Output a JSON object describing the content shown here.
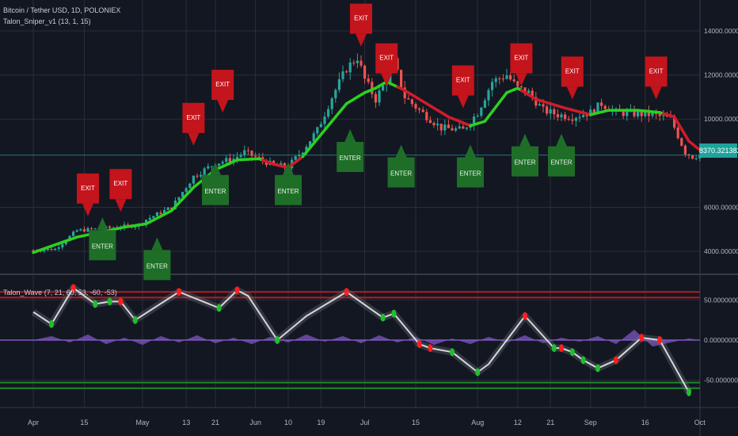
{
  "header": {
    "symbol_line": "Bitcoin / Tether USD, 1D, POLONIEX",
    "indicator_top": "Talon_Sniper_v1 (13, 1, 15)",
    "indicator_bottom": "Talon_Wave (7, 21, 60, 53, -60, -53)"
  },
  "colors": {
    "background": "#131722",
    "grid": "#2a2e39",
    "up_candle": "#26a69a",
    "down_candle": "#ef5350",
    "ema_up": "#2bd11f",
    "ema_down": "#d01c2a",
    "exit_marker": "#c4141c",
    "enter_marker": "#1f6e28",
    "wave_line": "#d8d8d8",
    "histogram": "#7e57c2",
    "overbought_band": "#b71c1c",
    "oversold_band": "#1b8a2b",
    "price_tag": "#1ea39a"
  },
  "labels": {
    "exit": "EXIT",
    "enter": "ENTER",
    "last_price": "8370.32138255"
  },
  "chart_data": [
    {
      "type": "candlestick",
      "title": "Bitcoin / Tether USD, 1D, POLONIEX",
      "ylim": [
        3000,
        15400
      ],
      "y_ticks": [
        "14000.00000000",
        "12000.00000000",
        "10000.00000000",
        "6000.00000000",
        "4000.00000000"
      ],
      "y_tick_values": [
        14000,
        12000,
        10000,
        6000,
        4000
      ],
      "x_ticks": [
        "Apr",
        "15",
        "May",
        "13",
        "21",
        "Jun",
        "10",
        "19",
        "Jul",
        "15",
        "Aug",
        "12",
        "21",
        "Sep",
        "16",
        "Oct"
      ],
      "x_tick_days": [
        0,
        14,
        30,
        42,
        50,
        61,
        70,
        79,
        91,
        105,
        122,
        133,
        142,
        153,
        168,
        183
      ],
      "price_path": [
        [
          0,
          4050
        ],
        [
          6,
          4110
        ],
        [
          12,
          4950
        ],
        [
          20,
          5050
        ],
        [
          29,
          5200
        ],
        [
          31,
          5450
        ],
        [
          38,
          6000
        ],
        [
          44,
          7400
        ],
        [
          50,
          8000
        ],
        [
          55,
          8200
        ],
        [
          58,
          8500
        ],
        [
          62,
          8200
        ],
        [
          66,
          7900
        ],
        [
          70,
          7850
        ],
        [
          74,
          8600
        ],
        [
          78,
          9500
        ],
        [
          82,
          11000
        ],
        [
          86,
          12300
        ],
        [
          89,
          12800
        ],
        [
          91,
          11800
        ],
        [
          94,
          10900
        ],
        [
          97,
          11800
        ],
        [
          99,
          12600
        ],
        [
          102,
          11000
        ],
        [
          106,
          10400
        ],
        [
          112,
          9600
        ],
        [
          118,
          9500
        ],
        [
          122,
          10300
        ],
        [
          126,
          11700
        ],
        [
          130,
          12000
        ],
        [
          133,
          11400
        ],
        [
          136,
          11200
        ],
        [
          140,
          10400
        ],
        [
          144,
          10200
        ],
        [
          148,
          10100
        ],
        [
          153,
          10300
        ],
        [
          156,
          10700
        ],
        [
          160,
          10300
        ],
        [
          164,
          10250
        ],
        [
          170,
          10200
        ],
        [
          175,
          10000
        ],
        [
          179,
          8500
        ],
        [
          181,
          8300
        ],
        [
          183,
          8370
        ]
      ],
      "ema_path": [
        [
          0,
          3950
        ],
        [
          12,
          4650
        ],
        [
          25,
          5100
        ],
        [
          31,
          5250
        ],
        [
          38,
          5850
        ],
        [
          44,
          6900
        ],
        [
          50,
          7700
        ],
        [
          56,
          8150
        ],
        [
          62,
          8200
        ],
        [
          66,
          7950
        ],
        [
          70,
          7800
        ],
        [
          74,
          8300
        ],
        [
          80,
          9500
        ],
        [
          86,
          10700
        ],
        [
          91,
          11200
        ],
        [
          94,
          11400
        ],
        [
          97,
          11700
        ],
        [
          102,
          11300
        ],
        [
          108,
          10700
        ],
        [
          114,
          10100
        ],
        [
          120,
          9700
        ],
        [
          124,
          9900
        ],
        [
          130,
          11200
        ],
        [
          133,
          11400
        ],
        [
          138,
          10900
        ],
        [
          146,
          10500
        ],
        [
          153,
          10200
        ],
        [
          158,
          10400
        ],
        [
          166,
          10400
        ],
        [
          172,
          10300
        ],
        [
          176,
          10100
        ],
        [
          180,
          9000
        ],
        [
          183,
          8600
        ]
      ],
      "ema_up_ranges": [
        [
          0,
          62
        ],
        [
          74,
          99
        ],
        [
          120,
          133
        ],
        [
          153,
          172
        ]
      ],
      "last_price": 8370.32138255,
      "exit_signals": [
        [
          15,
          7500
        ],
        [
          24,
          7700
        ],
        [
          44,
          10700
        ],
        [
          52,
          12200
        ],
        [
          90,
          15200
        ],
        [
          97,
          13400
        ],
        [
          118,
          12400
        ],
        [
          134,
          13400
        ],
        [
          148,
          12800
        ],
        [
          171,
          12800
        ]
      ],
      "enter_signals": [
        [
          19,
          3600
        ],
        [
          34,
          2700
        ],
        [
          50,
          6100
        ],
        [
          70,
          6100
        ],
        [
          87,
          7600
        ],
        [
          101,
          6900
        ],
        [
          120,
          6900
        ],
        [
          135,
          7400
        ],
        [
          145,
          7400
        ]
      ]
    },
    {
      "type": "line",
      "title": "Talon_Wave (7, 21, 60, 53, -60, -53)",
      "ylim": [
        -80,
        80
      ],
      "y_ticks": [
        "50.00000000",
        "0.00000000",
        "-50.00000000"
      ],
      "y_tick_values": [
        50,
        0,
        -50
      ],
      "overbought": [
        60,
        53
      ],
      "oversold": [
        -60,
        -53
      ],
      "wave_line": [
        [
          0,
          35
        ],
        [
          5,
          20
        ],
        [
          11,
          65
        ],
        [
          17,
          45
        ],
        [
          21,
          48
        ],
        [
          24,
          48
        ],
        [
          28,
          25
        ],
        [
          40,
          60
        ],
        [
          51,
          40
        ],
        [
          56,
          62
        ],
        [
          59,
          55
        ],
        [
          67,
          0
        ],
        [
          75,
          30
        ],
        [
          86,
          60
        ],
        [
          96,
          28
        ],
        [
          99,
          33
        ],
        [
          106,
          -5
        ],
        [
          109,
          -10
        ],
        [
          115,
          -15
        ],
        [
          122,
          -40
        ],
        [
          125,
          -30
        ],
        [
          135,
          30
        ],
        [
          143,
          -10
        ],
        [
          145,
          -10
        ],
        [
          148,
          -15
        ],
        [
          151,
          -25
        ],
        [
          155,
          -35
        ],
        [
          160,
          -25
        ],
        [
          167,
          3
        ],
        [
          172,
          0
        ],
        [
          180,
          -65
        ]
      ],
      "markers": [
        [
          5,
          20,
          "green"
        ],
        [
          11,
          65,
          "red"
        ],
        [
          17,
          45,
          "green"
        ],
        [
          21,
          48,
          "green"
        ],
        [
          24,
          48,
          "red"
        ],
        [
          28,
          25,
          "green"
        ],
        [
          40,
          60,
          "red"
        ],
        [
          51,
          40,
          "green"
        ],
        [
          56,
          62,
          "red"
        ],
        [
          67,
          0,
          "green"
        ],
        [
          86,
          60,
          "red"
        ],
        [
          96,
          28,
          "green"
        ],
        [
          99,
          33,
          "green"
        ],
        [
          106,
          -5,
          "red"
        ],
        [
          109,
          -10,
          "red"
        ],
        [
          115,
          -15,
          "green"
        ],
        [
          122,
          -40,
          "green"
        ],
        [
          135,
          30,
          "red"
        ],
        [
          143,
          -10,
          "green"
        ],
        [
          145,
          -10,
          "red"
        ],
        [
          148,
          -15,
          "green"
        ],
        [
          151,
          -25,
          "green"
        ],
        [
          155,
          -35,
          "green"
        ],
        [
          160,
          -25,
          "red"
        ],
        [
          167,
          3,
          "red"
        ],
        [
          172,
          0,
          "red"
        ],
        [
          180,
          -65,
          "green"
        ]
      ],
      "histogram_path": [
        [
          0,
          0
        ],
        [
          5,
          5
        ],
        [
          10,
          -3
        ],
        [
          15,
          7
        ],
        [
          20,
          -5
        ],
        [
          25,
          3
        ],
        [
          30,
          -6
        ],
        [
          35,
          5
        ],
        [
          40,
          -3
        ],
        [
          45,
          6
        ],
        [
          50,
          -4
        ],
        [
          55,
          3
        ],
        [
          60,
          -5
        ],
        [
          65,
          4
        ],
        [
          70,
          -3
        ],
        [
          75,
          7
        ],
        [
          80,
          -2
        ],
        [
          85,
          5
        ],
        [
          90,
          -4
        ],
        [
          95,
          6
        ],
        [
          100,
          -3
        ],
        [
          105,
          4
        ],
        [
          110,
          -6
        ],
        [
          115,
          2
        ],
        [
          120,
          -5
        ],
        [
          125,
          4
        ],
        [
          130,
          -3
        ],
        [
          135,
          6
        ],
        [
          140,
          -4
        ],
        [
          145,
          3
        ],
        [
          150,
          -2
        ],
        [
          155,
          5
        ],
        [
          160,
          -5
        ],
        [
          165,
          13
        ],
        [
          170,
          -8
        ],
        [
          175,
          -3
        ],
        [
          180,
          2
        ],
        [
          183,
          0
        ]
      ]
    }
  ]
}
